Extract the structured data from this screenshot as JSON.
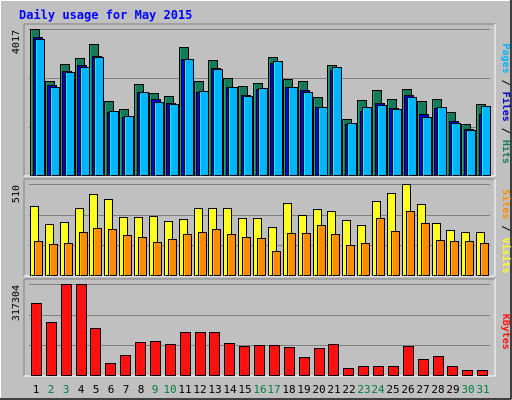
{
  "colors": {
    "background": "#c0c0c0",
    "panel": "#c0c0c0",
    "grid": "#808080",
    "title": "#0000ff",
    "hits": "#157a5c",
    "files": "#0000c8",
    "pages": "#00b4ff",
    "visits": "#ffff20",
    "sites": "#ff8c00",
    "kbytes": "#ff1010",
    "weekend_label": "#008040",
    "weekday_label": "#000000"
  },
  "chart_data": {
    "type": "bar",
    "title": "Daily usage for May 2015",
    "x": [
      "1",
      "2",
      "3",
      "4",
      "5",
      "6",
      "7",
      "8",
      "9",
      "10",
      "11",
      "12",
      "13",
      "14",
      "15",
      "16",
      "17",
      "18",
      "19",
      "20",
      "21",
      "22",
      "23",
      "24",
      "25",
      "26",
      "27",
      "28",
      "29",
      "30",
      "31"
    ],
    "weekend_days": [
      "2",
      "3",
      "9",
      "10",
      "16",
      "17",
      "23",
      "24",
      "30",
      "31"
    ],
    "panels": [
      {
        "ymax": 4017,
        "ymax_label": "4017",
        "legend": [
          "Pages",
          "Files",
          "Hits"
        ],
        "series": [
          {
            "name": "Hits",
            "color_key": "hits",
            "values": [
              4017,
              2608,
              3051,
              3218,
              3597,
              2051,
              1818,
              2522,
              2273,
              2189,
              3536,
              2609,
              3175,
              2667,
              2456,
              2530,
              3260,
              2653,
              2606,
              2157,
              3021,
              1568,
              2065,
              2337,
              2091,
              2388,
              2047,
              2107,
              1743,
              1417,
              1958
            ]
          },
          {
            "name": "Files",
            "color_key": "files",
            "values": [
              3800,
              2500,
              2870,
              3020,
              3280,
              1750,
              1600,
              2300,
              2100,
              2000,
              3200,
              2300,
              2950,
              2420,
              2200,
              2380,
              3100,
              2420,
              2350,
              1880,
              2900,
              1430,
              1780,
              2000,
              1850,
              2200,
              1700,
              1850,
              1500,
              1280,
              1700
            ]
          },
          {
            "name": "Pages",
            "color_key": "pages",
            "values": [
              3750,
              2434,
              2829,
              2987,
              3245,
              1774,
              1627,
              2306,
              2026,
              1970,
              3187,
              2322,
              2924,
              2442,
              2174,
              2415,
              3147,
              2430,
              2297,
              1873,
              2978,
              1442,
              1889,
              1946,
              1838,
              2152,
              1616,
              1878,
              1461,
              1258,
              1901
            ]
          }
        ]
      },
      {
        "ymax": 510,
        "ymax_label": "510",
        "legend": [
          "Sites",
          "Visits"
        ],
        "series": [
          {
            "name": "Visits",
            "color_key": "visits",
            "values": [
              386,
              287,
              297,
              376,
              452,
              427,
              326,
              325,
              330,
              305,
              317,
              377,
              379,
              376,
              324,
              323,
              273,
              407,
              336,
              371,
              363,
              309,
              280,
              416,
              460,
              510,
              400,
              292,
              255,
              246,
              243
            ]
          },
          {
            "name": "Sites",
            "color_key": "sites",
            "values": [
              194,
              180,
              182,
              246,
              266,
              262,
              228,
              214,
              189,
              206,
              232,
              243,
              261,
              235,
              217,
              213,
              140,
              238,
              236,
              282,
              233,
              172,
              181,
              324,
              252,
              362,
              295,
              198,
              194,
              193,
              182
            ]
          }
        ]
      },
      {
        "ymax": 317304,
        "ymax_label": "317304",
        "legend": [
          "KBytes"
        ],
        "series": [
          {
            "name": "KBytes",
            "color_key": "kbytes",
            "values": [
              253000,
              186000,
              317304,
              317304,
              166000,
              44000,
              71000,
              117000,
              122000,
              110000,
              152000,
              152000,
              152000,
              114000,
              104000,
              107000,
              107000,
              99000,
              64000,
              98000,
              111000,
              28000,
              33000,
              33000,
              33000,
              102000,
              60000,
              68000,
              33000,
              22000,
              22000
            ]
          }
        ]
      }
    ]
  }
}
